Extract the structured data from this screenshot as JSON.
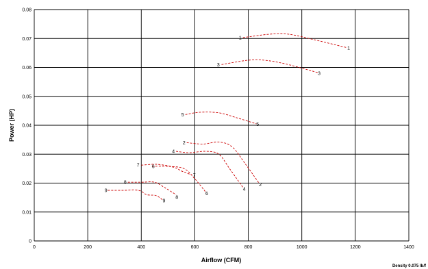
{
  "chart_data": {
    "type": "line",
    "xlabel": "Airflow (CFM)",
    "ylabel": "Power (HP)",
    "xlim": [
      0,
      1400
    ],
    "ylim": [
      0,
      0.08
    ],
    "x_ticks": [
      "0",
      "200",
      "400",
      "600",
      "800",
      "1000",
      "1200",
      "1400"
    ],
    "y_ticks": [
      "0",
      "0.01",
      "0.02",
      "0.03",
      "0.04",
      "0.05",
      "0.06",
      "0.07",
      "0.08"
    ],
    "grid": true,
    "note": "Density 0.075 lb/f",
    "series_color": "#cc0000",
    "series": [
      {
        "name": "1",
        "points": [
          [
            780,
            0.0703
          ],
          [
            880,
            0.0715
          ],
          [
            950,
            0.0715
          ],
          [
            1050,
            0.0695
          ],
          [
            1170,
            0.0668
          ]
        ]
      },
      {
        "name": "3",
        "points": [
          [
            700,
            0.061
          ],
          [
            800,
            0.0625
          ],
          [
            860,
            0.0625
          ],
          [
            940,
            0.0612
          ],
          [
            1060,
            0.0582
          ]
        ]
      },
      {
        "name": "5",
        "points": [
          [
            565,
            0.0437
          ],
          [
            620,
            0.0445
          ],
          [
            690,
            0.0443
          ],
          [
            760,
            0.0425
          ],
          [
            830,
            0.0405
          ]
        ]
      },
      {
        "name": "2",
        "points": [
          [
            570,
            0.034
          ],
          [
            630,
            0.0335
          ],
          [
            690,
            0.0342
          ],
          [
            740,
            0.0325
          ],
          [
            790,
            0.0265
          ],
          [
            840,
            0.02
          ]
        ]
      },
      {
        "name": "4",
        "points": [
          [
            530,
            0.031
          ],
          [
            580,
            0.0305
          ],
          [
            640,
            0.031
          ],
          [
            690,
            0.03
          ],
          [
            730,
            0.025
          ],
          [
            780,
            0.0185
          ]
        ]
      },
      {
        "name": "7",
        "points": [
          [
            400,
            0.0262
          ],
          [
            460,
            0.0265
          ],
          [
            520,
            0.0255
          ],
          [
            555,
            0.024
          ],
          [
            590,
            0.0228
          ]
        ]
      },
      {
        "name": "6",
        "points": [
          [
            440,
            0.0258
          ],
          [
            500,
            0.0258
          ],
          [
            560,
            0.025
          ],
          [
            600,
            0.0215
          ],
          [
            640,
            0.017
          ]
        ]
      },
      {
        "name": "8",
        "points": [
          [
            350,
            0.0203
          ],
          [
            400,
            0.0203
          ],
          [
            450,
            0.0203
          ],
          [
            490,
            0.0183
          ],
          [
            530,
            0.016
          ]
        ]
      },
      {
        "name": "9",
        "points": [
          [
            275,
            0.0175
          ],
          [
            330,
            0.0175
          ],
          [
            390,
            0.0175
          ],
          [
            420,
            0.016
          ],
          [
            455,
            0.0157
          ],
          [
            480,
            0.0142
          ]
        ]
      }
    ],
    "curve_labels": [
      {
        "text": "1",
        "x": 770,
        "y": 0.0703
      },
      {
        "text": "1",
        "x": 1175,
        "y": 0.0667
      },
      {
        "text": "3",
        "x": 688,
        "y": 0.061
      },
      {
        "text": "3",
        "x": 1065,
        "y": 0.058
      },
      {
        "text": "5",
        "x": 555,
        "y": 0.0437
      },
      {
        "text": "5",
        "x": 835,
        "y": 0.0403
      },
      {
        "text": "2",
        "x": 560,
        "y": 0.034
      },
      {
        "text": "2",
        "x": 845,
        "y": 0.0195
      },
      {
        "text": "4",
        "x": 520,
        "y": 0.031
      },
      {
        "text": "4",
        "x": 785,
        "y": 0.018
      },
      {
        "text": "7",
        "x": 388,
        "y": 0.0263
      },
      {
        "text": "7",
        "x": 598,
        "y": 0.0228
      },
      {
        "text": "6",
        "x": 445,
        "y": 0.0258
      },
      {
        "text": "6",
        "x": 645,
        "y": 0.0165
      },
      {
        "text": "8",
        "x": 340,
        "y": 0.0203
      },
      {
        "text": "8",
        "x": 533,
        "y": 0.0152
      },
      {
        "text": "9",
        "x": 268,
        "y": 0.0175
      },
      {
        "text": "9",
        "x": 485,
        "y": 0.014
      }
    ]
  }
}
